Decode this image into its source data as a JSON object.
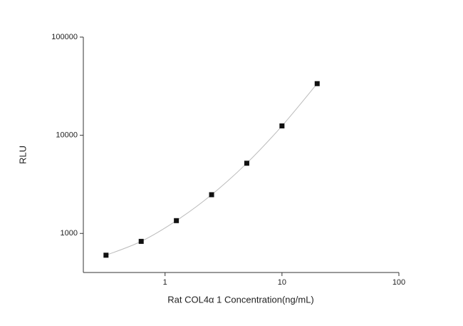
{
  "chart_data": {
    "type": "scatter",
    "x_label": "Rat COL4α 1 Concentration(ng/mL)",
    "y_label": "RLU",
    "xscale": "log",
    "yscale": "log",
    "xlim": [
      0.2,
      100
    ],
    "ylim": [
      400,
      100000
    ],
    "xticks": [
      1,
      10,
      100
    ],
    "yticks": [
      1000,
      10000,
      100000
    ],
    "curve": true,
    "curve_color": "#bbbbbb",
    "series": [
      {
        "color": "#111111",
        "x": [
          0.3125,
          0.625,
          1.25,
          2.5,
          5,
          10,
          20
        ],
        "values": [
          600,
          830,
          1350,
          2480,
          5190,
          12450,
          33570
        ]
      }
    ]
  }
}
